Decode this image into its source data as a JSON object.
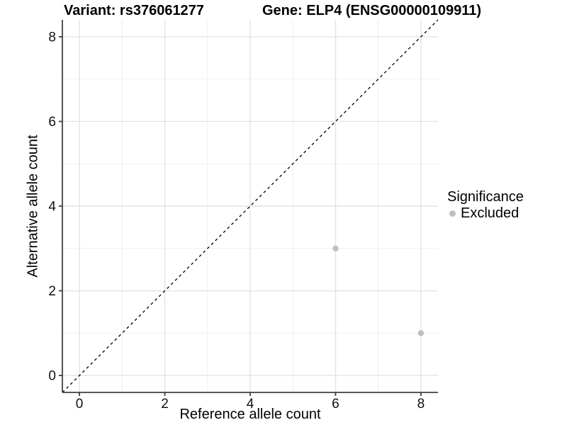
{
  "chart_data": {
    "type": "scatter",
    "title_left": "Variant: rs376061277",
    "title_right": "Gene: ELP4 (ENSG00000109911)",
    "xlabel": "Reference allele count",
    "ylabel": "Alternative allele count",
    "xlim": [
      -0.4,
      8.4
    ],
    "ylim": [
      -0.4,
      8.4
    ],
    "x_ticks": [
      0,
      2,
      4,
      6,
      8
    ],
    "y_ticks": [
      0,
      2,
      4,
      6,
      8
    ],
    "x_minor_ticks": [
      1,
      3,
      5,
      7
    ],
    "y_minor_ticks": [
      1,
      3,
      5,
      7
    ],
    "grid": "major+minor",
    "identity_line": {
      "slope": 1,
      "intercept": 0,
      "style": "dashed",
      "color": "#000000"
    },
    "series": [
      {
        "name": "Excluded",
        "color": "#bfbfbf",
        "points": [
          {
            "x": 6,
            "y": 3
          },
          {
            "x": 8,
            "y": 1
          }
        ]
      }
    ],
    "legend": {
      "title": "Significance",
      "position": "right",
      "entries": [
        {
          "label": "Excluded",
          "color": "#bfbfbf"
        }
      ]
    }
  },
  "colors": {
    "background": "#ffffff",
    "grid_major": "#e3e3e3",
    "grid_minor": "#ededed",
    "axis_line": "#404040",
    "tick_text": "#111111",
    "title_text": "#000000"
  }
}
